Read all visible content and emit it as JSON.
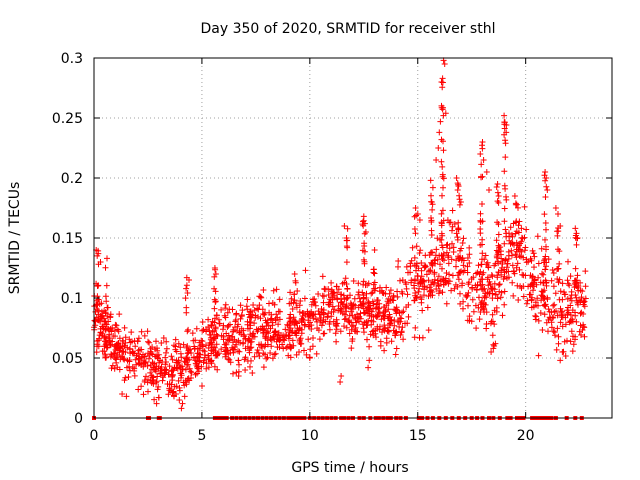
{
  "chart_data": {
    "type": "scatter",
    "title": "Day 350 of 2020, SRMTID for receiver sthl",
    "xlabel": "GPS time / hours",
    "ylabel": "SRMTID / TECUs",
    "xlim": [
      0,
      24
    ],
    "ylim": [
      0,
      0.3
    ],
    "xticks": [
      0,
      5,
      10,
      15,
      20
    ],
    "xtick_labels": [
      "0",
      "5",
      "10",
      "15",
      "20"
    ],
    "yticks": [
      0,
      0.05,
      0.1,
      0.15,
      0.2,
      0.25,
      0.3
    ],
    "ytick_labels": [
      "0",
      "0.05",
      "0.1",
      "0.15",
      "0.2",
      "0.25",
      "0.3"
    ],
    "grid": true,
    "marker": "plus",
    "color": "#ff0000",
    "trend": [
      [
        0.0,
        0.085
      ],
      [
        0.5,
        0.075
      ],
      [
        1.0,
        0.058
      ],
      [
        1.5,
        0.052
      ],
      [
        2.0,
        0.045
      ],
      [
        2.5,
        0.045
      ],
      [
        3.0,
        0.042
      ],
      [
        3.5,
        0.038
      ],
      [
        4.0,
        0.04
      ],
      [
        4.5,
        0.048
      ],
      [
        5.0,
        0.058
      ],
      [
        5.5,
        0.065
      ],
      [
        6.0,
        0.065
      ],
      [
        6.5,
        0.065
      ],
      [
        7.0,
        0.07
      ],
      [
        7.5,
        0.072
      ],
      [
        8.0,
        0.072
      ],
      [
        8.5,
        0.075
      ],
      [
        9.0,
        0.075
      ],
      [
        9.5,
        0.078
      ],
      [
        10.0,
        0.082
      ],
      [
        10.5,
        0.088
      ],
      [
        11.0,
        0.09
      ],
      [
        11.5,
        0.088
      ],
      [
        12.0,
        0.085
      ],
      [
        12.5,
        0.09
      ],
      [
        13.0,
        0.09
      ],
      [
        13.5,
        0.085
      ],
      [
        14.0,
        0.088
      ],
      [
        14.5,
        0.1
      ],
      [
        15.0,
        0.11
      ],
      [
        15.5,
        0.115
      ],
      [
        16.0,
        0.125
      ],
      [
        16.5,
        0.135
      ],
      [
        17.0,
        0.125
      ],
      [
        17.5,
        0.11
      ],
      [
        18.0,
        0.11
      ],
      [
        18.5,
        0.11
      ],
      [
        19.0,
        0.125
      ],
      [
        19.5,
        0.135
      ],
      [
        20.0,
        0.13
      ],
      [
        20.5,
        0.11
      ],
      [
        21.0,
        0.105
      ],
      [
        21.5,
        0.09
      ],
      [
        22.0,
        0.09
      ],
      [
        22.5,
        0.095
      ],
      [
        22.8,
        0.09
      ]
    ],
    "peaks": [
      [
        16.2,
        0.298
      ],
      [
        16.25,
        0.295
      ],
      [
        16.1,
        0.28
      ],
      [
        16.15,
        0.283
      ],
      [
        16.3,
        0.254
      ],
      [
        16.05,
        0.247
      ],
      [
        16.0,
        0.238
      ],
      [
        16.1,
        0.232
      ],
      [
        15.95,
        0.225
      ],
      [
        15.85,
        0.215
      ],
      [
        18.0,
        0.23
      ],
      [
        17.9,
        0.22
      ],
      [
        18.05,
        0.215
      ],
      [
        19.0,
        0.252
      ],
      [
        19.0,
        0.236
      ],
      [
        19.1,
        0.238
      ],
      [
        20.9,
        0.205
      ],
      [
        20.95,
        0.2
      ],
      [
        21.0,
        0.19
      ],
      [
        15.6,
        0.198
      ],
      [
        15.7,
        0.192
      ],
      [
        15.65,
        0.18
      ],
      [
        16.8,
        0.2
      ],
      [
        16.85,
        0.19
      ],
      [
        17.0,
        0.18
      ],
      [
        18.7,
        0.195
      ],
      [
        18.75,
        0.185
      ],
      [
        19.5,
        0.185
      ],
      [
        18.2,
        0.205
      ],
      [
        18.3,
        0.19
      ],
      [
        14.9,
        0.175
      ],
      [
        15.0,
        0.17
      ],
      [
        15.1,
        0.165
      ],
      [
        12.5,
        0.168
      ],
      [
        12.55,
        0.162
      ],
      [
        12.6,
        0.155
      ],
      [
        11.6,
        0.16
      ],
      [
        11.7,
        0.15
      ],
      [
        22.3,
        0.158
      ],
      [
        22.4,
        0.15
      ],
      [
        21.4,
        0.175
      ],
      [
        21.5,
        0.17
      ],
      [
        21.6,
        0.16
      ],
      [
        0.1,
        0.14
      ],
      [
        0.2,
        0.137
      ],
      [
        0.3,
        0.13
      ],
      [
        0.6,
        0.133
      ],
      [
        5.6,
        0.125
      ],
      [
        5.65,
        0.12
      ],
      [
        4.3,
        0.117
      ],
      [
        4.4,
        0.115
      ],
      [
        9.3,
        0.12
      ],
      [
        9.8,
        0.123
      ],
      [
        10.6,
        0.118
      ],
      [
        13.0,
        0.14
      ]
    ],
    "lows": [
      [
        4.05,
        0.008
      ],
      [
        4.1,
        0.012
      ],
      [
        3.95,
        0.015
      ],
      [
        2.9,
        0.012
      ],
      [
        3.0,
        0.017
      ],
      [
        2.5,
        0.022
      ],
      [
        1.3,
        0.02
      ],
      [
        1.5,
        0.018
      ],
      [
        3.8,
        0.02
      ],
      [
        4.2,
        0.018
      ],
      [
        11.4,
        0.03
      ],
      [
        11.45,
        0.035
      ],
      [
        12.7,
        0.042
      ],
      [
        12.75,
        0.048
      ],
      [
        6.6,
        0.038
      ],
      [
        6.7,
        0.035
      ],
      [
        7.0,
        0.04
      ],
      [
        21.6,
        0.048
      ],
      [
        21.7,
        0.055
      ],
      [
        20.6,
        0.052
      ],
      [
        18.4,
        0.055
      ],
      [
        18.5,
        0.058
      ],
      [
        18.6,
        0.062
      ],
      [
        9.5,
        0.055
      ],
      [
        10.0,
        0.05
      ]
    ],
    "zero_markers_x": [
      0.0,
      2.5,
      2.55,
      3.0,
      3.05,
      5.6,
      5.7,
      5.8,
      5.9,
      6.0,
      6.15,
      6.4,
      6.6,
      6.8,
      7.0,
      7.2,
      7.4,
      7.6,
      7.8,
      8.0,
      8.2,
      8.4,
      8.6,
      8.8,
      9.0,
      9.15,
      9.3,
      9.45,
      9.6,
      9.75,
      10.0,
      10.2,
      10.4,
      10.6,
      10.8,
      11.0,
      11.2,
      11.45,
      11.6,
      11.8,
      12.0,
      12.3,
      12.5,
      12.8,
      13.05,
      13.2,
      13.4,
      13.6,
      13.75,
      14.0,
      14.2,
      14.45,
      15.05,
      15.2,
      15.45,
      15.7,
      16.0,
      16.3,
      16.6,
      16.9,
      17.2,
      17.5,
      17.75,
      18.0,
      18.3,
      18.5,
      18.8,
      19.15,
      19.3,
      19.6,
      19.75,
      19.9,
      20.3,
      20.45,
      20.6,
      20.75,
      20.9,
      21.05,
      21.2,
      21.4,
      21.9,
      22.3,
      22.6
    ]
  }
}
